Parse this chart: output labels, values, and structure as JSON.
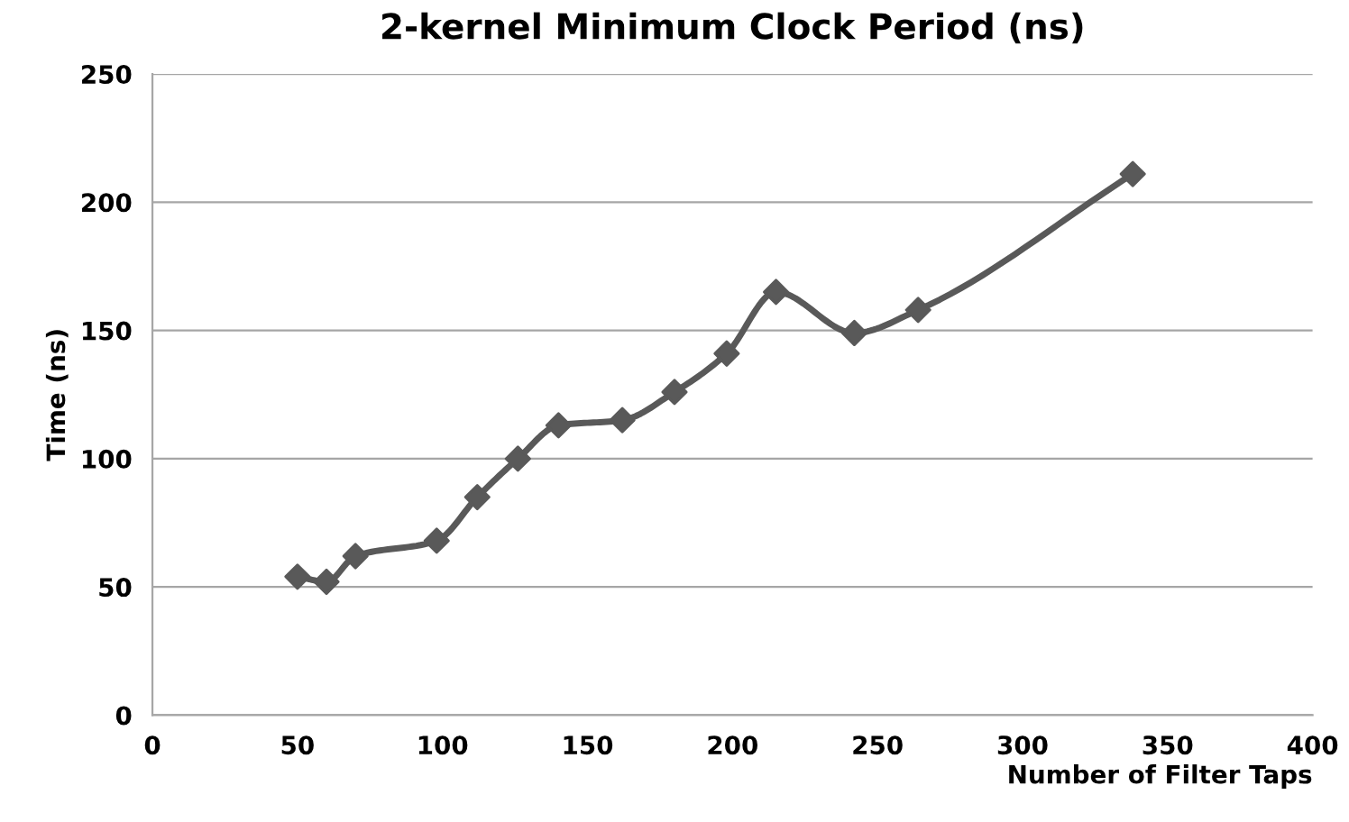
{
  "chart_data": {
    "type": "line",
    "title": "2-kernel Minimum Clock Period (ns)",
    "xlabel": "Number of Filter Taps",
    "ylabel": "Time (ns)",
    "series": [
      {
        "color": "#595959",
        "x": [
          50,
          60,
          70,
          98,
          112,
          126,
          140,
          162,
          180,
          198,
          215,
          242,
          264,
          338
        ],
        "values": [
          54,
          52,
          62,
          68,
          85,
          100,
          113,
          115,
          126,
          141,
          165,
          149,
          158,
          211
        ]
      }
    ],
    "xlim": [
      0,
      400
    ],
    "xticks": [
      0,
      50,
      100,
      150,
      200,
      250,
      300,
      350,
      400
    ],
    "ylim": [
      0,
      250
    ],
    "yticks": [
      0,
      50,
      100,
      150,
      200,
      250
    ],
    "grid": "y",
    "marker": "diamond",
    "line_style": "solid",
    "legend": false
  }
}
